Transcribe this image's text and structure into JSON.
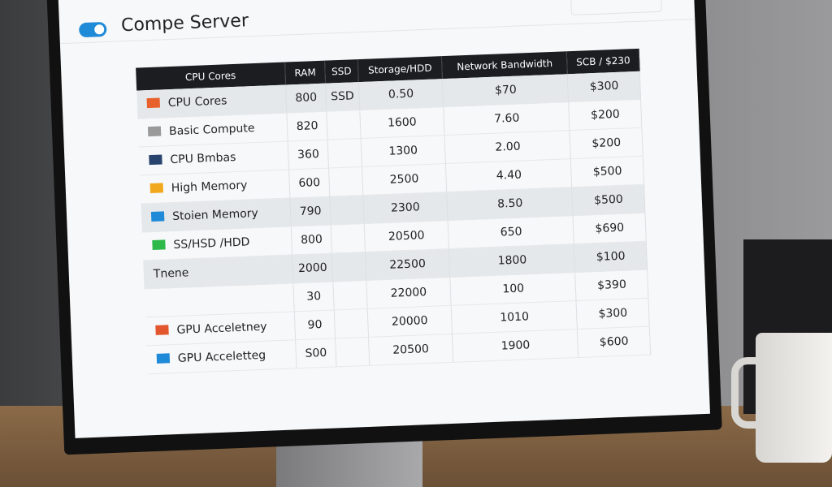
{
  "header": {
    "title": "Compe Server"
  },
  "table": {
    "columns": [
      "CPU Cores",
      "RAM",
      "SSD",
      "Storage/HDD",
      "Network Bandwidth",
      "SCB / $230"
    ],
    "rows": [
      {
        "color": "#e8612c",
        "shaded": true,
        "cells": [
          "CPU Cores",
          "800",
          "SSD",
          "0.50",
          "$70",
          "$300"
        ]
      },
      {
        "color": "#9a9a9a",
        "shaded": false,
        "cells": [
          "Basic Compute",
          "820",
          null,
          "1600",
          "7.60",
          "$200"
        ]
      },
      {
        "color": "#27436e",
        "shaded": false,
        "cells": [
          "CPU Bmbas",
          "360",
          null,
          "1300",
          "2.00",
          "$200"
        ]
      },
      {
        "color": "#f2a81d",
        "shaded": false,
        "cells": [
          "High Memory",
          "600",
          null,
          "2500",
          "4.40",
          "$500"
        ]
      },
      {
        "color": "#1f8ad8",
        "shaded": true,
        "cells": [
          "Stoien Memory",
          "790",
          null,
          "2300",
          "8.50",
          "$500"
        ]
      },
      {
        "color": "#2db84a",
        "shaded": false,
        "cells": [
          "SS/HSD /HDD",
          "800",
          null,
          "20500",
          "650",
          "$690"
        ]
      },
      {
        "color": null,
        "shaded": true,
        "cells": [
          "Tnene",
          "2000",
          null,
          "22500",
          "1800",
          "$100"
        ]
      },
      {
        "color": null,
        "shaded": false,
        "cells": [
          null,
          "30",
          null,
          "22000",
          "100",
          "$390"
        ]
      },
      {
        "color": "#e4572e",
        "shaded": false,
        "cells": [
          "GPU Acceletney",
          "90",
          null,
          "20000",
          "1010",
          "$300"
        ]
      },
      {
        "color": "#1f8ad8",
        "shaded": false,
        "cells": [
          "GPU Acceletteg",
          "S00",
          null,
          "20500",
          "1900",
          "$600"
        ]
      }
    ]
  }
}
